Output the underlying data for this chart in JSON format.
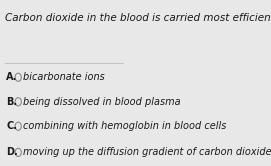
{
  "title": "Carbon dioxide in the blood is carried most efficiently by:",
  "options": [
    {
      "label": "A.",
      "text": "bicarbonate ions"
    },
    {
      "label": "B.",
      "text": "being dissolved in blood plasma"
    },
    {
      "label": "C.",
      "text": "combining with hemoglobin in blood cells"
    },
    {
      "label": "D.",
      "text": "moving up the diffusion gradient of carbon dioxide in the tissues"
    }
  ],
  "bg_color": "#e8e8e8",
  "title_color": "#1a1a1a",
  "option_color": "#1a1a1a",
  "label_color": "#1a1a1a",
  "circle_color": "#888888",
  "divider_color": "#bbbbbb",
  "title_fontsize": 7.5,
  "option_fontsize": 7.0,
  "figsize": [
    2.71,
    1.66
  ],
  "dpi": 100
}
